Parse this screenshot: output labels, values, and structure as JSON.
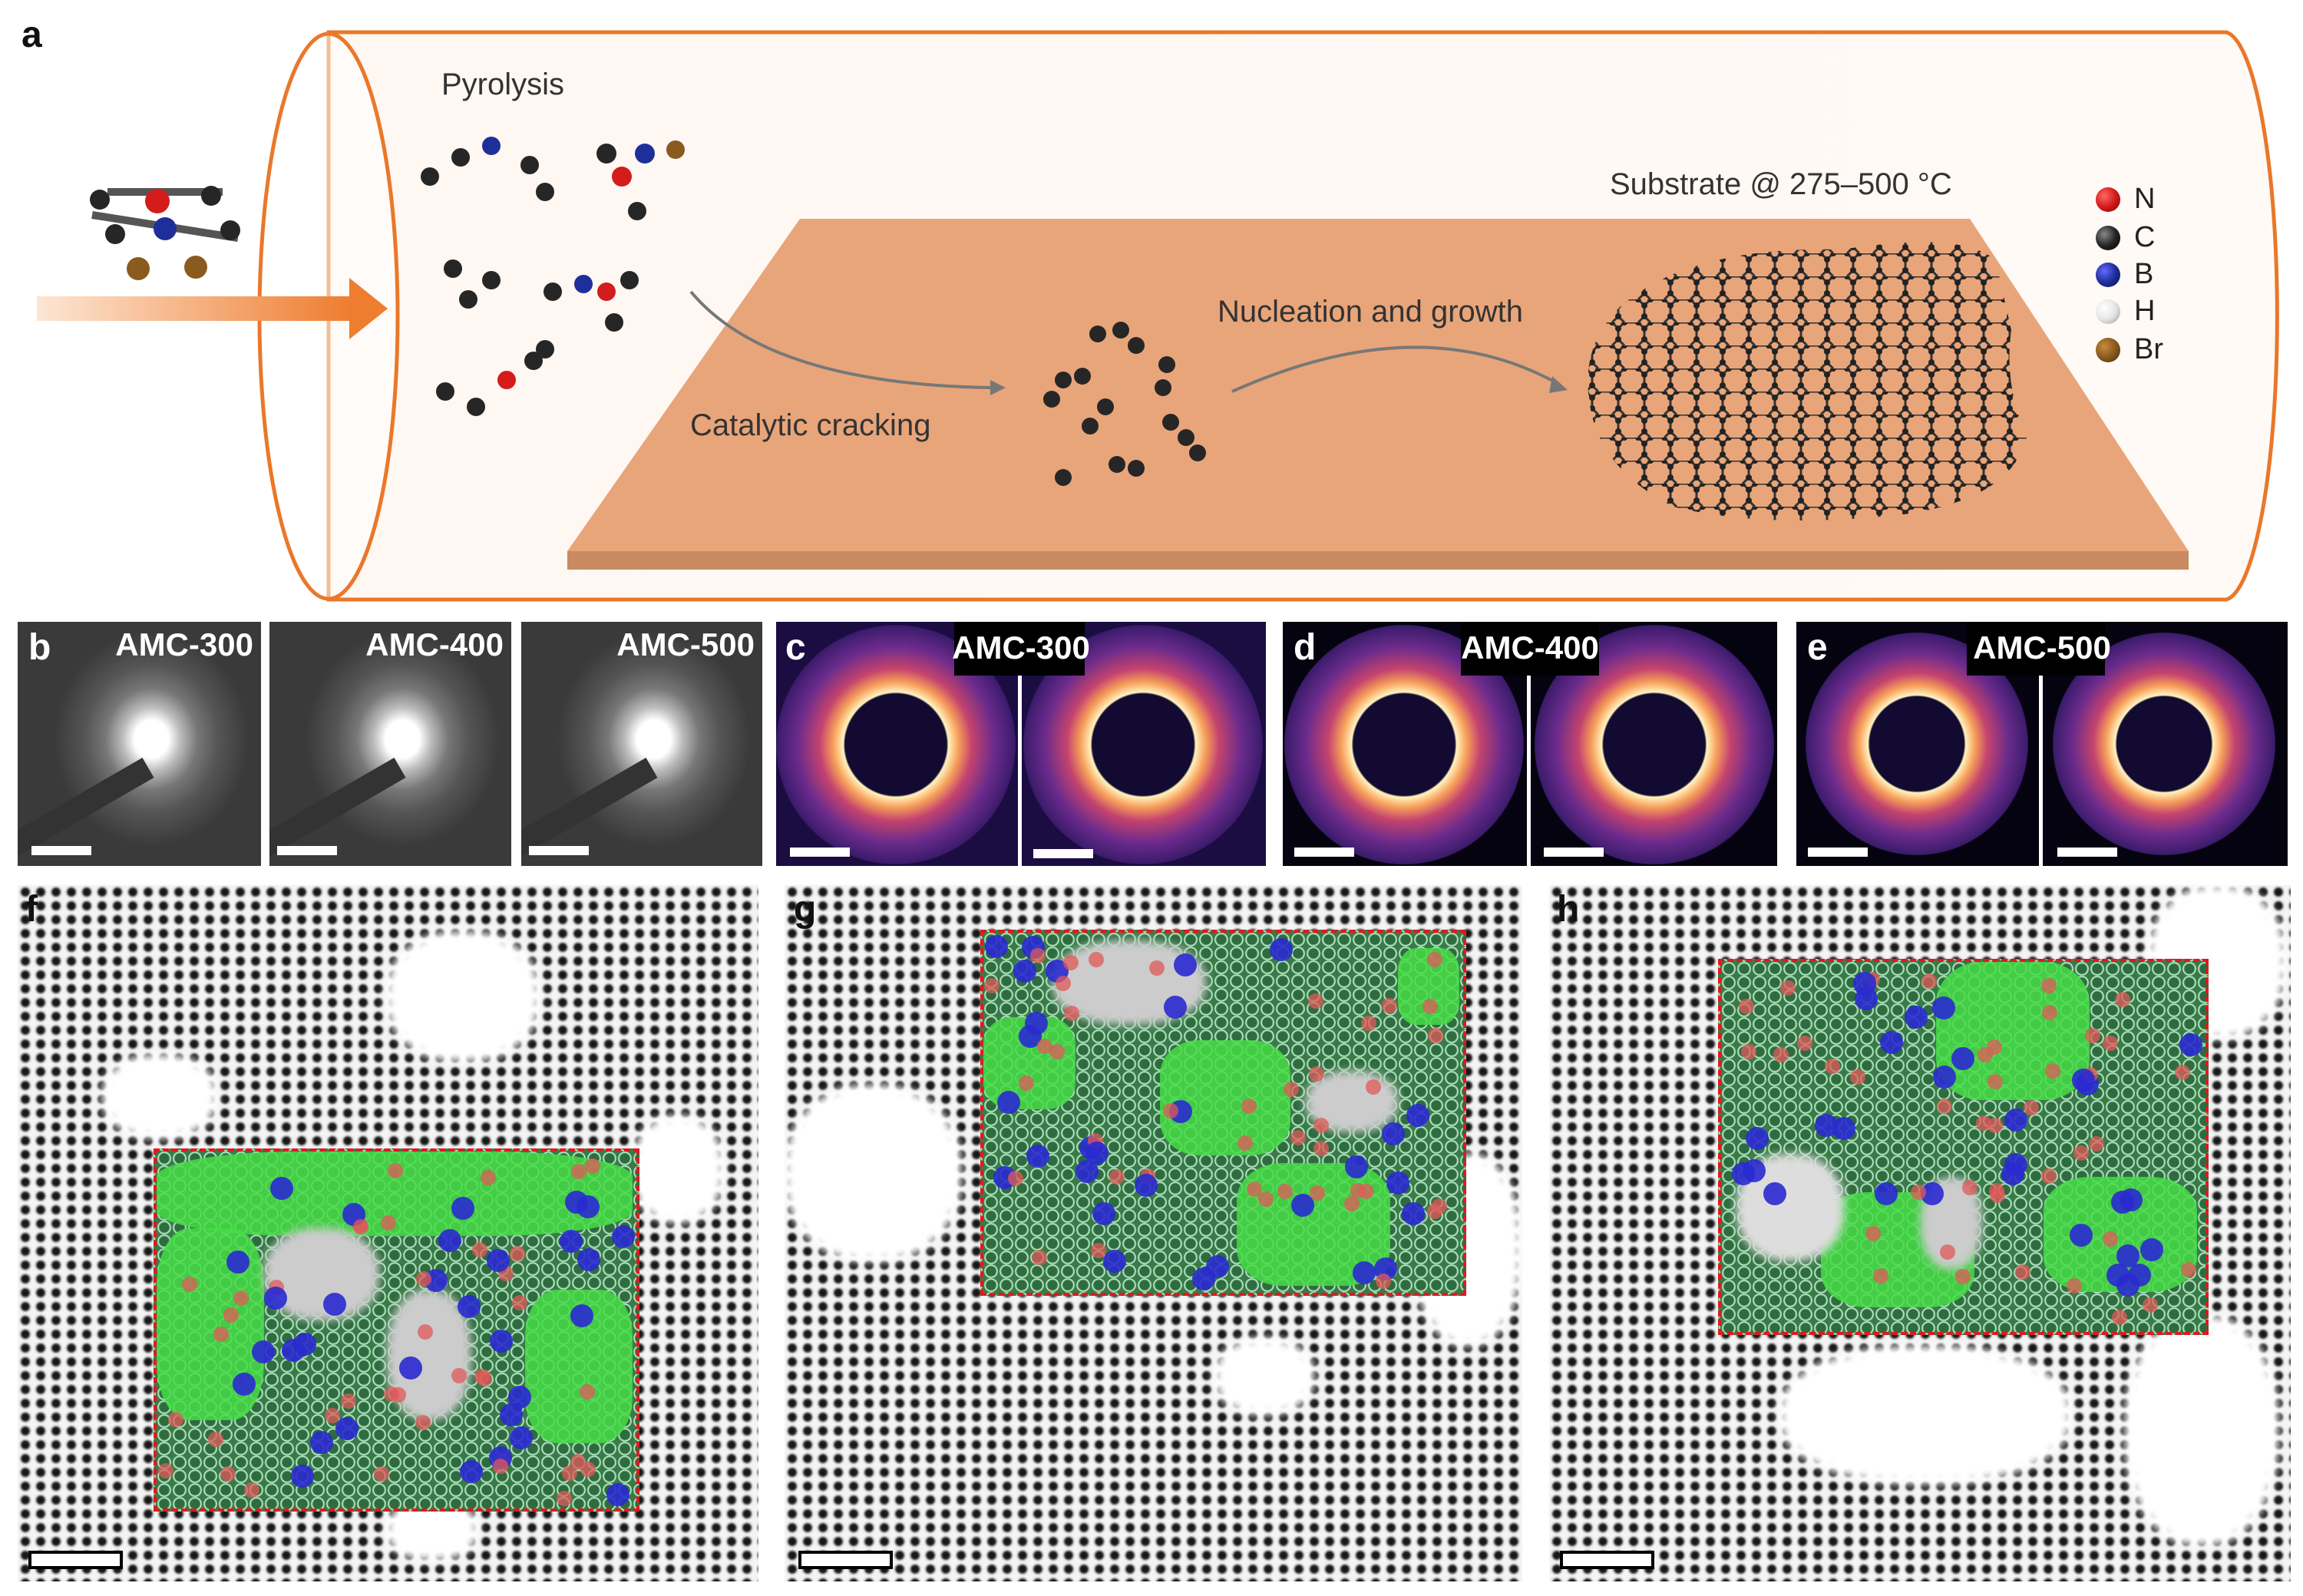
{
  "panel_a": {
    "label": "a",
    "pyrolysis": "Pyrolysis",
    "catalytic_cracking": "Catalytic cracking",
    "nucleation": "Nucleation and growth",
    "substrate": "Substrate @ 275–500 °C",
    "legend": [
      {
        "symbol": "N",
        "color": "#d41c1c"
      },
      {
        "symbol": "C",
        "color": "#262626"
      },
      {
        "symbol": "B",
        "color": "#1f2f9a"
      },
      {
        "symbol": "H",
        "color": "#e6e6e6"
      },
      {
        "symbol": "Br",
        "color": "#8a5a1e"
      }
    ],
    "colors": {
      "tube": "#e9782a",
      "substrate": "#e8a57a",
      "substrate_edge": "#c98a62"
    }
  },
  "panel_b": {
    "label": "b",
    "titles": [
      "AMC-300",
      "AMC-400",
      "AMC-500"
    ]
  },
  "panel_c": {
    "label": "c",
    "title": "AMC-300"
  },
  "panel_d": {
    "label": "d",
    "title": "AMC-400"
  },
  "panel_e": {
    "label": "e",
    "title": "AMC-500"
  },
  "panel_f": {
    "label": "f"
  },
  "panel_g": {
    "label": "g"
  },
  "panel_h": {
    "label": "h"
  },
  "ring_colors": {
    "hexagon": "#3a7a48",
    "crystallite": "#46dc46",
    "pentagon": "#e05a5a",
    "heptagon": "#2a2ad0",
    "roi_border": "#e0191f"
  }
}
